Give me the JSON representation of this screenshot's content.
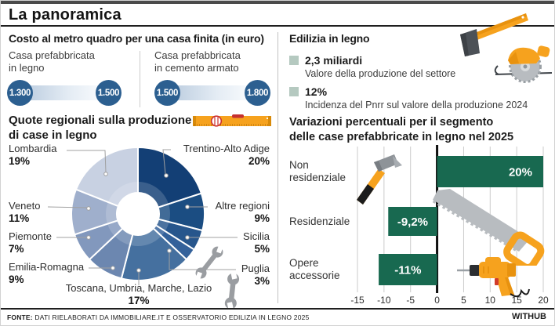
{
  "header": {
    "title": "La panoramica"
  },
  "footer": {
    "source_label": "FONTE:",
    "source_text": " DATI RIELABORATI DA IMMOBILIARE.IT E OSSERVATORIO EDILIZIA IN LEGNO 2025",
    "brand": "WITHUB"
  },
  "cost_section": {
    "title": "Costo al metro quadro per una casa finita (in euro)",
    "items": [
      {
        "label_line1": "Casa prefabbricata",
        "label_line2": "in legno",
        "min": "1.300",
        "max": "1.500"
      },
      {
        "label_line1": "Casa prefabbricata",
        "label_line2": "in cemento armato",
        "min": "1.500",
        "max": "1.800"
      }
    ]
  },
  "edilizia_section": {
    "title": "Edilizia in legno",
    "stats": [
      {
        "value": "2,3 miliardi",
        "desc": "Valore della produzione del settore"
      },
      {
        "value": "12%",
        "desc": "Incidenza del Pnrr sul valore della produzione 2024"
      }
    ]
  },
  "icons": [
    "axe-icon",
    "circular-saw-icon",
    "spirit-level-icon",
    "wrench-small-icon",
    "wrench-large-icon",
    "hammer-icon",
    "handsaw-icon",
    "drill-icon"
  ],
  "colors": {
    "accent_orange": "#f6a21e",
    "dark_blue_circle": "#2c5f90",
    "legend_square": "#b5c9c0",
    "bar_green": "#186950",
    "rule_dark": "#1f1f1f"
  },
  "chart_data": [
    {
      "type": "pie",
      "title": "Quote regionali sulla produzione di case in legno",
      "title_lines": [
        "Quote regionali sulla produzione",
        "di case in legno"
      ],
      "unit": "%",
      "slices": [
        {
          "label": "Trentino-Alto Adige",
          "value": 20,
          "pct": "20%",
          "color": "#133f75"
        },
        {
          "label": "Altre regioni",
          "value": 9,
          "pct": "9%",
          "color": "#1b4d82"
        },
        {
          "label": "Sicilia",
          "value": 5,
          "pct": "5%",
          "color": "#27568c"
        },
        {
          "label": "Puglia",
          "value": 3,
          "pct": "3%",
          "color": "#33619a"
        },
        {
          "label": "Toscana, Umbria, Marche, Lazio",
          "value": 17,
          "pct": "17%",
          "color": "#45709f"
        },
        {
          "label": "Emilia-Romagna",
          "value": 9,
          "pct": "9%",
          "color": "#6c87b0"
        },
        {
          "label": "Piemonte",
          "value": 7,
          "pct": "7%",
          "color": "#8298bd"
        },
        {
          "label": "Veneto",
          "value": 11,
          "pct": "11%",
          "color": "#9fafcc"
        },
        {
          "label": "Lombardia",
          "value": 19,
          "pct": "19%",
          "color": "#c8d1e2"
        }
      ]
    },
    {
      "type": "bar",
      "orientation": "horizontal",
      "title": "Variazioni percentuali per il segmento delle case prefabbricate in legno nel 2025",
      "title_lines": [
        "Variazioni percentuali per il segmento",
        "delle case prefabbricate in legno nel 2025"
      ],
      "categories": [
        "Non residenziale",
        "Residenziale",
        "Opere accessorie"
      ],
      "category_lines": [
        [
          "Non",
          "residenziale"
        ],
        [
          "Residenziale"
        ],
        [
          "Opere",
          "accessorie"
        ]
      ],
      "values": [
        20,
        -9.2,
        -11
      ],
      "bar_labels": [
        "20%",
        "-9,2%",
        "-11%"
      ],
      "xlim": [
        -15,
        20
      ],
      "xticks": [
        -15,
        -10,
        -5,
        0,
        5,
        10,
        15,
        20
      ],
      "bar_color": "#186950",
      "grid": true
    }
  ]
}
